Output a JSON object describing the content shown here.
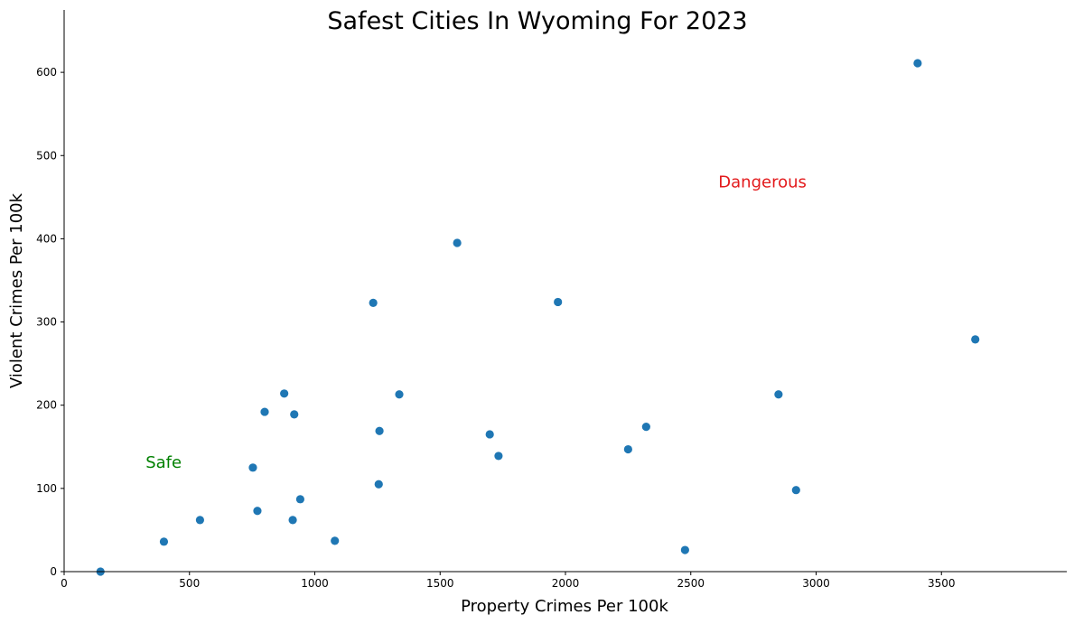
{
  "chart_data": {
    "type": "scatter",
    "title": "Safest Cities In Wyoming For 2023",
    "xlabel": "Property Crimes Per 100k",
    "ylabel": "Violent Crimes Per 100k",
    "xlim": [
      0,
      4000
    ],
    "ylim": [
      0,
      675
    ],
    "x_ticks": [
      0,
      500,
      1000,
      1500,
      2000,
      2500,
      3000,
      3500
    ],
    "y_ticks": [
      0,
      100,
      200,
      300,
      400,
      500,
      600
    ],
    "grid": false,
    "marker_color": "#1f77b4",
    "points": [
      {
        "x": 145,
        "y": 0
      },
      {
        "x": 398,
        "y": 36
      },
      {
        "x": 542,
        "y": 62
      },
      {
        "x": 753,
        "y": 125
      },
      {
        "x": 771,
        "y": 73
      },
      {
        "x": 800,
        "y": 192
      },
      {
        "x": 878,
        "y": 214
      },
      {
        "x": 912,
        "y": 62
      },
      {
        "x": 918,
        "y": 189
      },
      {
        "x": 942,
        "y": 87
      },
      {
        "x": 1080,
        "y": 37
      },
      {
        "x": 1233,
        "y": 323
      },
      {
        "x": 1255,
        "y": 105
      },
      {
        "x": 1258,
        "y": 169
      },
      {
        "x": 1337,
        "y": 213
      },
      {
        "x": 1568,
        "y": 395
      },
      {
        "x": 1698,
        "y": 165
      },
      {
        "x": 1733,
        "y": 139
      },
      {
        "x": 1970,
        "y": 324
      },
      {
        "x": 2250,
        "y": 147
      },
      {
        "x": 2322,
        "y": 174
      },
      {
        "x": 2477,
        "y": 26
      },
      {
        "x": 2850,
        "y": 213
      },
      {
        "x": 2920,
        "y": 98
      },
      {
        "x": 3405,
        "y": 611
      },
      {
        "x": 3635,
        "y": 279
      }
    ],
    "annotations": [
      {
        "text": "Safe",
        "x": 325,
        "y": 125,
        "color": "#008000"
      },
      {
        "text": "Dangerous",
        "x": 2610,
        "y": 462,
        "color": "#e31a1c"
      }
    ]
  }
}
